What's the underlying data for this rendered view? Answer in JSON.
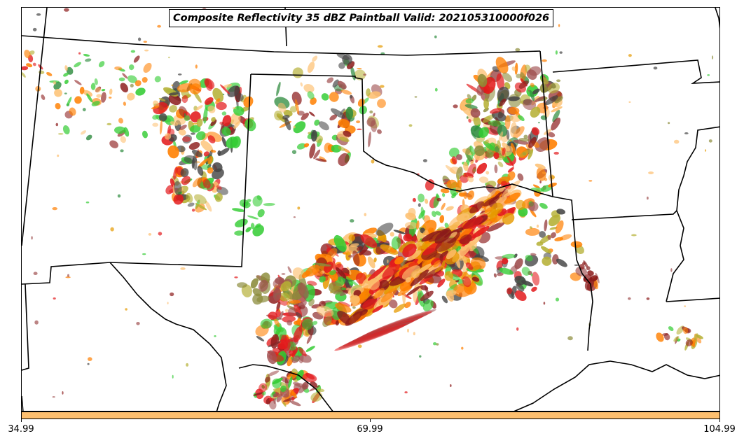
{
  "title": "Composite Reflectivity 35 dBZ Paintball Valid: 202105310000f026",
  "colorbar": {
    "color": "#fdbf6f",
    "ticks": [
      "34.99",
      "69.99",
      "104.99"
    ]
  },
  "palette": {
    "red": "#e31a1c",
    "orange": "#ff7f00",
    "light_orange": "#fdbf6f",
    "dark_red": "#8b1a1a",
    "brown": "#a05050",
    "green": "#33cc33",
    "dark_green": "#2e8b3e",
    "olive": "#b5b035",
    "olive_brown": "#8b8b3a",
    "gray": "#444444",
    "amber": "#e69a00"
  },
  "map": {
    "boundaries_color": "#000000"
  }
}
